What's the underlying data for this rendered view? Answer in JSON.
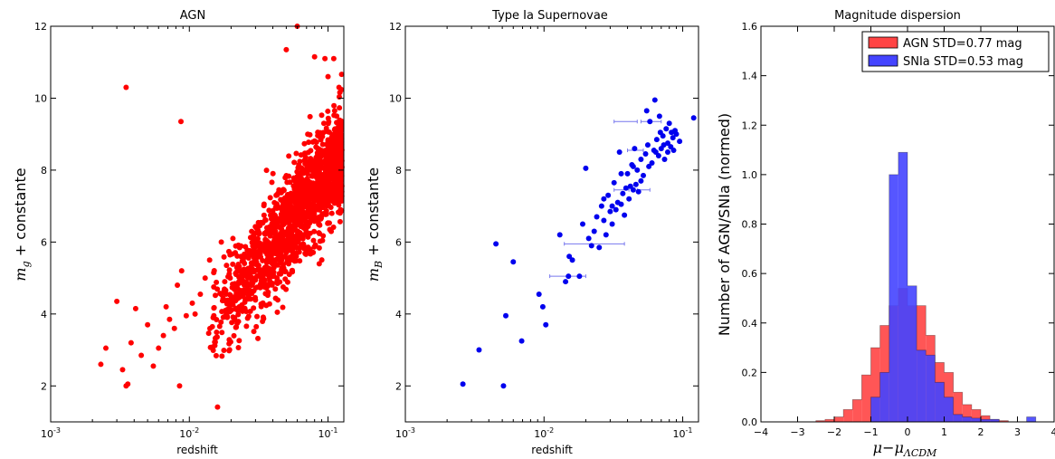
{
  "colors": {
    "agn": "#ff0000",
    "sn": "#0000ee",
    "hist_agn": "#ff4444",
    "hist_sn": "#4444ff"
  },
  "chart_data": [
    {
      "type": "scatter",
      "title": "AGN",
      "xlabel": "redshift",
      "ylabel_parts": {
        "m": "m",
        "sub": "g",
        "rest": " + constante"
      },
      "xscale": "log",
      "xlim": [
        0.001,
        0.13
      ],
      "ylim": [
        1,
        12
      ],
      "xticks": [
        0.001,
        0.01,
        0.1
      ],
      "xtick_labels": [
        {
          "base": "10",
          "exp": "-3"
        },
        {
          "base": "10",
          "exp": "-2"
        },
        {
          "base": "10",
          "exp": "-1"
        }
      ],
      "yticks": [
        2,
        4,
        6,
        8,
        10,
        12
      ],
      "ytick_labels": [
        "2",
        "4",
        "6",
        "8",
        "10",
        "12"
      ],
      "outliers": [
        [
          0.0023,
          2.6
        ],
        [
          0.0025,
          3.05
        ],
        [
          0.003,
          4.35
        ],
        [
          0.0033,
          2.45
        ],
        [
          0.0035,
          2.0
        ],
        [
          0.0036,
          2.05
        ],
        [
          0.0038,
          3.2
        ],
        [
          0.0041,
          4.15
        ],
        [
          0.0045,
          2.85
        ],
        [
          0.0035,
          10.3
        ],
        [
          0.0087,
          9.35
        ],
        [
          0.0085,
          2.0
        ],
        [
          0.005,
          3.7
        ],
        [
          0.0055,
          2.55
        ],
        [
          0.006,
          3.05
        ],
        [
          0.0065,
          3.4
        ],
        [
          0.0068,
          4.2
        ],
        [
          0.0072,
          3.85
        ],
        [
          0.0078,
          3.6
        ],
        [
          0.0082,
          4.8
        ],
        [
          0.0088,
          5.2
        ],
        [
          0.0095,
          3.95
        ],
        [
          0.0105,
          4.3
        ],
        [
          0.011,
          4.0
        ],
        [
          0.012,
          4.55
        ],
        [
          0.013,
          5.0
        ],
        [
          0.014,
          5.5
        ],
        [
          0.015,
          4.75
        ],
        [
          0.017,
          6.0
        ],
        [
          0.018,
          4.9
        ],
        [
          0.06,
          12.0
        ],
        [
          0.08,
          11.15
        ],
        [
          0.095,
          11.1
        ],
        [
          0.11,
          11.1
        ],
        [
          0.12,
          10.3
        ],
        [
          0.1,
          10.6
        ],
        [
          0.05,
          11.35
        ]
      ],
      "cloud_seed": 42,
      "cloud_count": 1500
    },
    {
      "type": "scatter",
      "title": "Type Ia Supernovae",
      "xlabel": "redshift",
      "ylabel_parts": {
        "m": "m",
        "sub": "B",
        "rest": " + constante"
      },
      "xscale": "log",
      "xlim": [
        0.001,
        0.13
      ],
      "ylim": [
        1,
        12
      ],
      "xticks": [
        0.001,
        0.01,
        0.1
      ],
      "xtick_labels": [
        {
          "base": "10",
          "exp": "-3"
        },
        {
          "base": "10",
          "exp": "-2"
        },
        {
          "base": "10",
          "exp": "-1"
        }
      ],
      "yticks": [
        2,
        4,
        6,
        8,
        10,
        12
      ],
      "ytick_labels": [
        "2",
        "4",
        "6",
        "8",
        "10",
        "12"
      ],
      "points": [
        [
          0.0026,
          2.05
        ],
        [
          0.0034,
          3.0
        ],
        [
          0.0045,
          5.95
        ],
        [
          0.0051,
          2.0
        ],
        [
          0.0053,
          3.95
        ],
        [
          0.006,
          5.45
        ],
        [
          0.0069,
          3.25
        ],
        [
          0.0092,
          4.55
        ],
        [
          0.0098,
          4.2
        ],
        [
          0.0103,
          3.7
        ],
        [
          0.013,
          6.2
        ],
        [
          0.0143,
          4.9
        ],
        [
          0.015,
          5.05
        ],
        [
          0.0152,
          5.6
        ],
        [
          0.016,
          5.5
        ],
        [
          0.018,
          5.05
        ],
        [
          0.019,
          6.5
        ],
        [
          0.02,
          8.05
        ],
        [
          0.021,
          6.1
        ],
        [
          0.022,
          5.9
        ],
        [
          0.023,
          6.3
        ],
        [
          0.024,
          6.7
        ],
        [
          0.025,
          5.85
        ],
        [
          0.026,
          7.0
        ],
        [
          0.027,
          6.6
        ],
        [
          0.028,
          6.2
        ],
        [
          0.029,
          7.3
        ],
        [
          0.03,
          6.85
        ],
        [
          0.031,
          6.5
        ],
        [
          0.032,
          7.65
        ],
        [
          0.033,
          6.9
        ],
        [
          0.034,
          7.1
        ],
        [
          0.035,
          8.5
        ],
        [
          0.036,
          7.05
        ],
        [
          0.037,
          7.35
        ],
        [
          0.038,
          6.75
        ],
        [
          0.039,
          7.5
        ],
        [
          0.04,
          7.9
        ],
        [
          0.041,
          7.2
        ],
        [
          0.042,
          7.55
        ],
        [
          0.043,
          8.15
        ],
        [
          0.044,
          7.45
        ],
        [
          0.045,
          8.6
        ],
        [
          0.046,
          7.6
        ],
        [
          0.047,
          8.0
        ],
        [
          0.048,
          7.4
        ],
        [
          0.05,
          8.3
        ],
        [
          0.052,
          7.85
        ],
        [
          0.054,
          8.45
        ],
        [
          0.056,
          8.7
        ],
        [
          0.058,
          9.35
        ],
        [
          0.06,
          8.2
        ],
        [
          0.062,
          8.55
        ],
        [
          0.063,
          9.95
        ],
        [
          0.065,
          8.85
        ],
        [
          0.067,
          8.4
        ],
        [
          0.069,
          9.05
        ],
        [
          0.07,
          8.6
        ],
        [
          0.072,
          8.95
        ],
        [
          0.074,
          8.3
        ],
        [
          0.076,
          9.15
        ],
        [
          0.078,
          8.75
        ],
        [
          0.08,
          9.3
        ],
        [
          0.082,
          8.65
        ],
        [
          0.085,
          8.9
        ],
        [
          0.088,
          9.1
        ],
        [
          0.09,
          9.0
        ],
        [
          0.095,
          8.8
        ],
        [
          0.12,
          9.45
        ],
        [
          0.055,
          9.65
        ],
        [
          0.068,
          9.5
        ],
        [
          0.036,
          7.9
        ],
        [
          0.027,
          7.2
        ],
        [
          0.031,
          7.0
        ],
        [
          0.044,
          8.1
        ],
        [
          0.05,
          7.7
        ],
        [
          0.057,
          8.1
        ],
        [
          0.064,
          8.5
        ],
        [
          0.073,
          8.7
        ],
        [
          0.078,
          8.5
        ],
        [
          0.083,
          9.05
        ],
        [
          0.086,
          8.55
        ]
      ],
      "error_bars": [
        [
          0.015,
          5.05,
          0.011,
          0.02
        ],
        [
          0.0195,
          5.95,
          0.014,
          0.038
        ],
        [
          0.04,
          9.35,
          0.032,
          0.047
        ],
        [
          0.058,
          9.35,
          0.05,
          0.07
        ],
        [
          0.046,
          8.55,
          0.04,
          0.052
        ],
        [
          0.0365,
          7.45,
          0.032,
          0.041
        ],
        [
          0.053,
          7.45,
          0.047,
          0.058
        ]
      ]
    },
    {
      "type": "bar",
      "title": "Magnitude dispersion",
      "xlabel_parts": {
        "mu": "μ",
        "minus": "−",
        "mu2": "μ",
        "sub": "ΛCDM"
      },
      "ylabel": "Number of AGN/SNIa (normed)",
      "xlim": [
        -4,
        4
      ],
      "ylim": [
        0,
        1.6
      ],
      "xticks": [
        -4,
        -3,
        -2,
        -1,
        0,
        1,
        2,
        3,
        4
      ],
      "xtick_labels": [
        "−4",
        "−3",
        "−2",
        "−1",
        "0",
        "1",
        "2",
        "3",
        "4"
      ],
      "yticks": [
        0,
        0.2,
        0.4,
        0.6,
        0.8,
        1.0,
        1.2,
        1.4,
        1.6
      ],
      "ytick_labels": [
        "0.0",
        "0.2",
        "0.4",
        "0.6",
        "0.8",
        "1.0",
        "1.2",
        "1.4",
        "1.6"
      ],
      "bin_edges": [
        -2.75,
        -2.5,
        -2.25,
        -2.0,
        -1.75,
        -1.5,
        -1.25,
        -1.0,
        -0.75,
        -0.5,
        -0.25,
        0.0,
        0.25,
        0.5,
        0.75,
        1.0,
        1.25,
        1.5,
        1.75,
        2.0,
        2.25,
        2.5,
        2.75,
        3.0,
        3.25,
        3.5
      ],
      "series": [
        {
          "name": "AGN STD=0.77 mag",
          "values": [
            0.0,
            0.005,
            0.01,
            0.02,
            0.05,
            0.09,
            0.19,
            0.3,
            0.39,
            0.47,
            0.54,
            0.47,
            0.47,
            0.35,
            0.24,
            0.2,
            0.12,
            0.07,
            0.05,
            0.025,
            0.01,
            0.005,
            0.0,
            0.0,
            0.0
          ]
        },
        {
          "name": "SNIa STD=0.53 mag",
          "values": [
            0.0,
            0.0,
            0.0,
            0.0,
            0.0,
            0.0,
            0.0,
            0.1,
            0.2,
            1.0,
            1.09,
            0.55,
            0.29,
            0.27,
            0.16,
            0.1,
            0.03,
            0.02,
            0.015,
            0.01,
            0.01,
            0.0,
            0.0,
            0.0,
            0.02
          ]
        }
      ],
      "legend": "top-right"
    }
  ]
}
